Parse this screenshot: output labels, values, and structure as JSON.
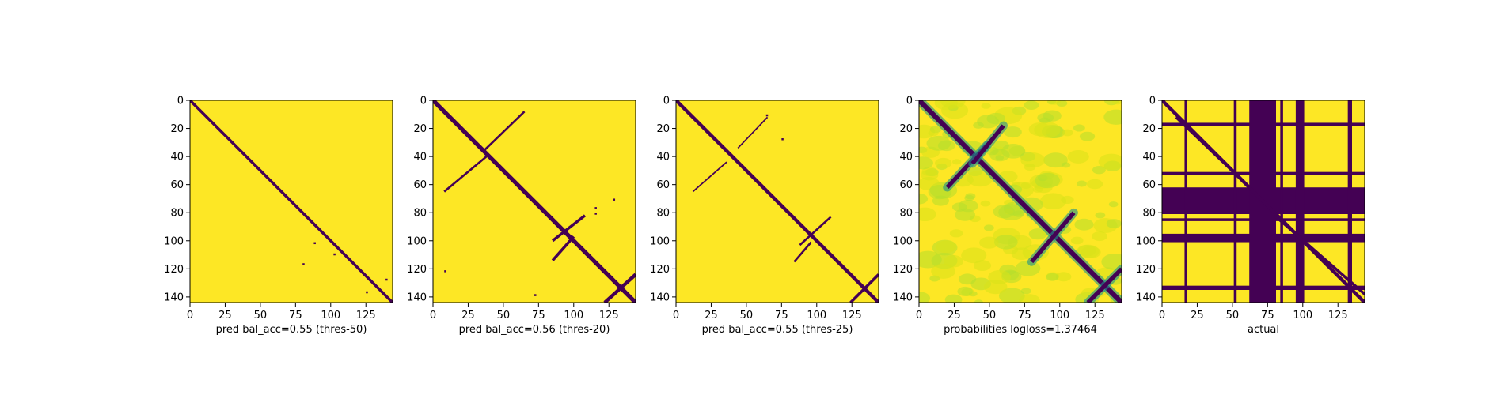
{
  "figure": {
    "background": "#ffffff",
    "colors": {
      "high": "#fde725",
      "low": "#440154",
      "mid": "#21918c",
      "light": "#b5de2b",
      "pale": "#d8e219"
    }
  },
  "chart_data": [
    {
      "type": "heatmap",
      "title": "",
      "xlabel": "pred bal_acc=0.55 (thres-50)",
      "ylabel": "",
      "xlim": [
        0,
        144
      ],
      "ylim": [
        144,
        0
      ],
      "xticks": [
        0,
        25,
        50,
        75,
        100,
        125
      ],
      "yticks": [
        0,
        20,
        40,
        60,
        80,
        100,
        120,
        140
      ],
      "colormap": "viridis",
      "description_values": {
        "diagonal": "low",
        "background": "high"
      },
      "contact_bands": [
        {
          "from": [
            0,
            0
          ],
          "to": [
            144,
            144
          ],
          "width": 2
        }
      ],
      "specks": [
        [
          88,
          101
        ],
        [
          102,
          109
        ],
        [
          80,
          116
        ],
        [
          125,
          136
        ],
        [
          139,
          127
        ]
      ]
    },
    {
      "type": "heatmap",
      "title": "",
      "xlabel": "pred bal_acc=0.56 (thres-20)",
      "ylabel": "",
      "xlim": [
        0,
        144
      ],
      "ylim": [
        144,
        0
      ],
      "xticks": [
        0,
        25,
        50,
        75,
        100,
        125
      ],
      "yticks": [
        0,
        20,
        40,
        60,
        80,
        100,
        120,
        140
      ],
      "colormap": "viridis",
      "contact_bands": [
        {
          "from": [
            0,
            0
          ],
          "to": [
            144,
            144
          ],
          "width": 3
        },
        {
          "from": [
            36,
            36
          ],
          "to": [
            65,
            8
          ],
          "width": 1.5
        },
        {
          "from": [
            8,
            65
          ],
          "to": [
            38,
            40
          ],
          "width": 1.5
        },
        {
          "from": [
            85,
            100
          ],
          "to": [
            108,
            82
          ],
          "width": 2
        },
        {
          "from": [
            85,
            114
          ],
          "to": [
            100,
            97
          ],
          "width": 2
        },
        {
          "from": [
            122,
            144
          ],
          "to": [
            144,
            124
          ],
          "width": 2.5
        }
      ],
      "specks": [
        [
          115,
          76
        ],
        [
          115,
          80
        ],
        [
          72,
          138
        ],
        [
          8,
          121
        ],
        [
          126,
          139
        ],
        [
          128,
          70
        ]
      ]
    },
    {
      "type": "heatmap",
      "title": "",
      "xlabel": "pred bal_acc=0.55 (thres-25)",
      "ylabel": "",
      "xlim": [
        0,
        144
      ],
      "ylim": [
        144,
        0
      ],
      "xticks": [
        0,
        25,
        50,
        75,
        100,
        125
      ],
      "yticks": [
        0,
        20,
        40,
        60,
        80,
        100,
        120,
        140
      ],
      "colormap": "viridis",
      "contact_bands": [
        {
          "from": [
            0,
            0
          ],
          "to": [
            144,
            144
          ],
          "width": 2.5
        },
        {
          "from": [
            44,
            34
          ],
          "to": [
            65,
            12
          ],
          "width": 1
        },
        {
          "from": [
            12,
            65
          ],
          "to": [
            36,
            44
          ],
          "width": 1
        },
        {
          "from": [
            88,
            103
          ],
          "to": [
            110,
            83
          ],
          "width": 1.5
        },
        {
          "from": [
            84,
            115
          ],
          "to": [
            96,
            101
          ],
          "width": 1.5
        },
        {
          "from": [
            124,
            144
          ],
          "to": [
            144,
            124
          ],
          "width": 2
        }
      ],
      "specks": [
        [
          75,
          27
        ],
        [
          64,
          10
        ]
      ]
    },
    {
      "type": "heatmap",
      "title": "",
      "xlabel": "probabilities logloss=1.37464",
      "ylabel": "",
      "xlim": [
        0,
        144
      ],
      "ylim": [
        144,
        0
      ],
      "xticks": [
        0,
        25,
        50,
        75,
        100,
        125
      ],
      "yticks": [
        0,
        20,
        40,
        60,
        80,
        100,
        120,
        140
      ],
      "colormap": "viridis",
      "contact_bands": [
        {
          "from": [
            0,
            0
          ],
          "to": [
            144,
            144
          ],
          "width": 3.5
        },
        {
          "from": [
            20,
            62
          ],
          "to": [
            48,
            32
          ],
          "width": 3
        },
        {
          "from": [
            38,
            45
          ],
          "to": [
            60,
            18
          ],
          "width": 3
        },
        {
          "from": [
            80,
            115
          ],
          "to": [
            110,
            80
          ],
          "width": 3
        },
        {
          "from": [
            120,
            144
          ],
          "to": [
            144,
            120
          ],
          "width": 3
        }
      ]
    },
    {
      "type": "heatmap",
      "title": "",
      "xlabel": "actual",
      "ylabel": "",
      "xlim": [
        0,
        144
      ],
      "ylim": [
        144,
        0
      ],
      "xticks": [
        0,
        25,
        50,
        75,
        100,
        125
      ],
      "yticks": [
        0,
        20,
        40,
        60,
        80,
        100,
        120,
        140
      ],
      "colormap": "viridis",
      "low_row_bands": [
        [
          16,
          18
        ],
        [
          51,
          53
        ],
        [
          62,
          81
        ],
        [
          84,
          86
        ],
        [
          95,
          101
        ],
        [
          132,
          135
        ]
      ],
      "low_col_bands": [
        [
          16,
          18
        ],
        [
          51,
          53
        ],
        [
          62,
          81
        ],
        [
          84,
          86
        ],
        [
          95,
          101
        ],
        [
          132,
          135
        ]
      ],
      "contact_bands": [
        {
          "from": [
            0,
            0
          ],
          "to": [
            144,
            144
          ],
          "width": 2.5
        },
        {
          "from": [
            10,
            12
          ],
          "to": [
            55,
            55
          ],
          "width": 2
        },
        {
          "from": [
            80,
            82
          ],
          "to": [
            144,
            138
          ],
          "width": 2
        }
      ]
    }
  ]
}
